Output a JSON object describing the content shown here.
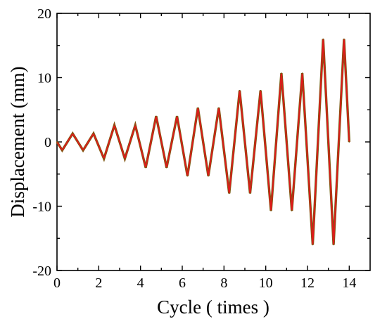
{
  "chart_data": {
    "type": "line",
    "title": "",
    "xlabel": "Cycle ( times )",
    "ylabel": "Displacement (mm)",
    "xlim": [
      0,
      15
    ],
    "ylim": [
      -20,
      20
    ],
    "x_ticks": [
      0,
      2,
      4,
      6,
      8,
      10,
      12,
      14
    ],
    "y_ticks": [
      -20,
      -10,
      0,
      10,
      20
    ],
    "grid": false,
    "legend": "none",
    "series": [
      {
        "color": "#e0191b",
        "outline_color": "#7a5a10",
        "x": [
          0,
          0.25,
          0.75,
          1.25,
          1.75,
          2.25,
          2.75,
          3.25,
          3.75,
          4.25,
          4.75,
          5.25,
          5.75,
          6.25,
          6.75,
          7.25,
          7.75,
          8.25,
          8.75,
          9.25,
          9.75,
          10.25,
          10.75,
          11.25,
          11.75,
          12.25,
          12.75,
          13.25,
          13.75,
          14
        ],
        "y": [
          0,
          -1.3,
          1.3,
          -1.3,
          1.3,
          -2.6,
          2.6,
          -2.6,
          2.6,
          -4.0,
          4.0,
          -4.0,
          4.0,
          -5.3,
          5.3,
          -5.3,
          5.3,
          -8.0,
          8.0,
          -8.0,
          8.0,
          -10.7,
          10.7,
          -10.7,
          10.7,
          -16.0,
          16.0,
          -16.0,
          16.0,
          0
        ]
      }
    ]
  }
}
